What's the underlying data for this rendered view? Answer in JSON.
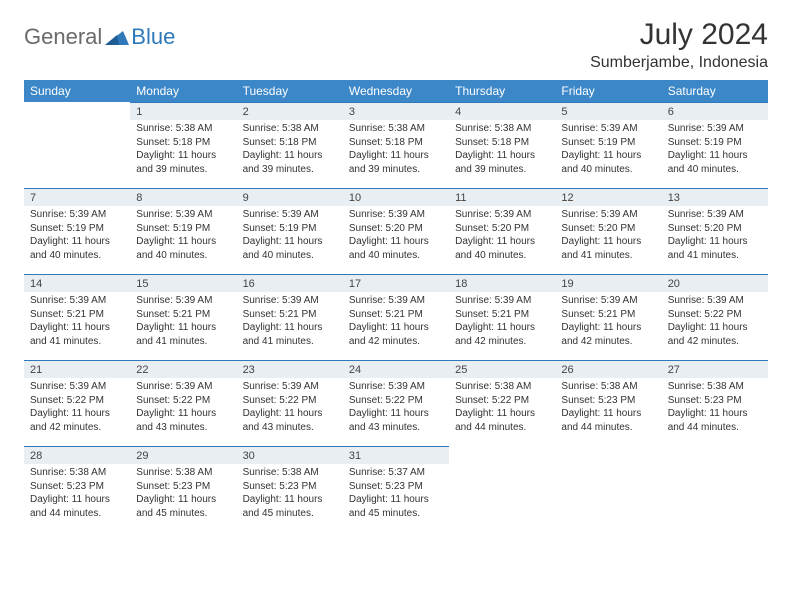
{
  "brand": {
    "text1": "General",
    "text2": "Blue"
  },
  "title": "July 2024",
  "location": "Sumberjambe, Indonesia",
  "colors": {
    "header_bg": "#3b87c8",
    "header_text": "#ffffff",
    "daynum_bg": "#e9eef2",
    "daynum_border": "#2f78b9",
    "text": "#333333",
    "logo_gray": "#6a6a6a",
    "logo_blue": "#2f78b9"
  },
  "day_headers": [
    "Sunday",
    "Monday",
    "Tuesday",
    "Wednesday",
    "Thursday",
    "Friday",
    "Saturday"
  ],
  "layout": {
    "first_day_offset": 1,
    "days_in_month": 31
  },
  "days": [
    {
      "n": 1,
      "sr": "5:38 AM",
      "ss": "5:18 PM",
      "dl": "11 hours and 39 minutes."
    },
    {
      "n": 2,
      "sr": "5:38 AM",
      "ss": "5:18 PM",
      "dl": "11 hours and 39 minutes."
    },
    {
      "n": 3,
      "sr": "5:38 AM",
      "ss": "5:18 PM",
      "dl": "11 hours and 39 minutes."
    },
    {
      "n": 4,
      "sr": "5:38 AM",
      "ss": "5:18 PM",
      "dl": "11 hours and 39 minutes."
    },
    {
      "n": 5,
      "sr": "5:39 AM",
      "ss": "5:19 PM",
      "dl": "11 hours and 40 minutes."
    },
    {
      "n": 6,
      "sr": "5:39 AM",
      "ss": "5:19 PM",
      "dl": "11 hours and 40 minutes."
    },
    {
      "n": 7,
      "sr": "5:39 AM",
      "ss": "5:19 PM",
      "dl": "11 hours and 40 minutes."
    },
    {
      "n": 8,
      "sr": "5:39 AM",
      "ss": "5:19 PM",
      "dl": "11 hours and 40 minutes."
    },
    {
      "n": 9,
      "sr": "5:39 AM",
      "ss": "5:19 PM",
      "dl": "11 hours and 40 minutes."
    },
    {
      "n": 10,
      "sr": "5:39 AM",
      "ss": "5:20 PM",
      "dl": "11 hours and 40 minutes."
    },
    {
      "n": 11,
      "sr": "5:39 AM",
      "ss": "5:20 PM",
      "dl": "11 hours and 40 minutes."
    },
    {
      "n": 12,
      "sr": "5:39 AM",
      "ss": "5:20 PM",
      "dl": "11 hours and 41 minutes."
    },
    {
      "n": 13,
      "sr": "5:39 AM",
      "ss": "5:20 PM",
      "dl": "11 hours and 41 minutes."
    },
    {
      "n": 14,
      "sr": "5:39 AM",
      "ss": "5:21 PM",
      "dl": "11 hours and 41 minutes."
    },
    {
      "n": 15,
      "sr": "5:39 AM",
      "ss": "5:21 PM",
      "dl": "11 hours and 41 minutes."
    },
    {
      "n": 16,
      "sr": "5:39 AM",
      "ss": "5:21 PM",
      "dl": "11 hours and 41 minutes."
    },
    {
      "n": 17,
      "sr": "5:39 AM",
      "ss": "5:21 PM",
      "dl": "11 hours and 42 minutes."
    },
    {
      "n": 18,
      "sr": "5:39 AM",
      "ss": "5:21 PM",
      "dl": "11 hours and 42 minutes."
    },
    {
      "n": 19,
      "sr": "5:39 AM",
      "ss": "5:21 PM",
      "dl": "11 hours and 42 minutes."
    },
    {
      "n": 20,
      "sr": "5:39 AM",
      "ss": "5:22 PM",
      "dl": "11 hours and 42 minutes."
    },
    {
      "n": 21,
      "sr": "5:39 AM",
      "ss": "5:22 PM",
      "dl": "11 hours and 42 minutes."
    },
    {
      "n": 22,
      "sr": "5:39 AM",
      "ss": "5:22 PM",
      "dl": "11 hours and 43 minutes."
    },
    {
      "n": 23,
      "sr": "5:39 AM",
      "ss": "5:22 PM",
      "dl": "11 hours and 43 minutes."
    },
    {
      "n": 24,
      "sr": "5:39 AM",
      "ss": "5:22 PM",
      "dl": "11 hours and 43 minutes."
    },
    {
      "n": 25,
      "sr": "5:38 AM",
      "ss": "5:22 PM",
      "dl": "11 hours and 44 minutes."
    },
    {
      "n": 26,
      "sr": "5:38 AM",
      "ss": "5:23 PM",
      "dl": "11 hours and 44 minutes."
    },
    {
      "n": 27,
      "sr": "5:38 AM",
      "ss": "5:23 PM",
      "dl": "11 hours and 44 minutes."
    },
    {
      "n": 28,
      "sr": "5:38 AM",
      "ss": "5:23 PM",
      "dl": "11 hours and 44 minutes."
    },
    {
      "n": 29,
      "sr": "5:38 AM",
      "ss": "5:23 PM",
      "dl": "11 hours and 45 minutes."
    },
    {
      "n": 30,
      "sr": "5:38 AM",
      "ss": "5:23 PM",
      "dl": "11 hours and 45 minutes."
    },
    {
      "n": 31,
      "sr": "5:37 AM",
      "ss": "5:23 PM",
      "dl": "11 hours and 45 minutes."
    }
  ],
  "labels": {
    "sunrise": "Sunrise:",
    "sunset": "Sunset:",
    "daylight": "Daylight:"
  }
}
